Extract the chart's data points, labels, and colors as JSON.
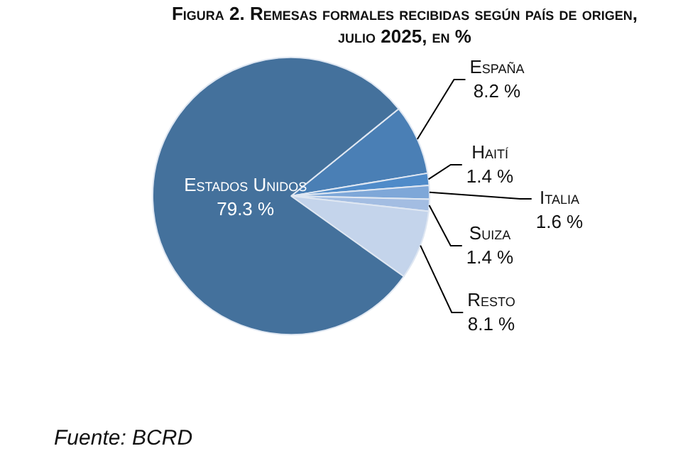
{
  "chart_data": {
    "type": "pie",
    "title": "Figura 2. Remesas formales recibidas según país de origen, julio 2025, en %",
    "categories": [
      "España",
      "Haití",
      "Italia",
      "Suiza",
      "Resto",
      "Estados Unidos"
    ],
    "values": [
      8.2,
      1.4,
      1.6,
      1.4,
      8.1,
      79.3
    ],
    "colors": [
      "#4a7fb5",
      "#4f8bc9",
      "#7ea7d8",
      "#a3bde2",
      "#c4d4eb",
      "#44719c"
    ],
    "value_labels": [
      "8.2 %",
      "1.4 %",
      "1.6 %",
      "1.4 %",
      "8.1 %",
      "79.3 %"
    ],
    "annotations": [
      "Fuente: BCRD"
    ]
  }
}
